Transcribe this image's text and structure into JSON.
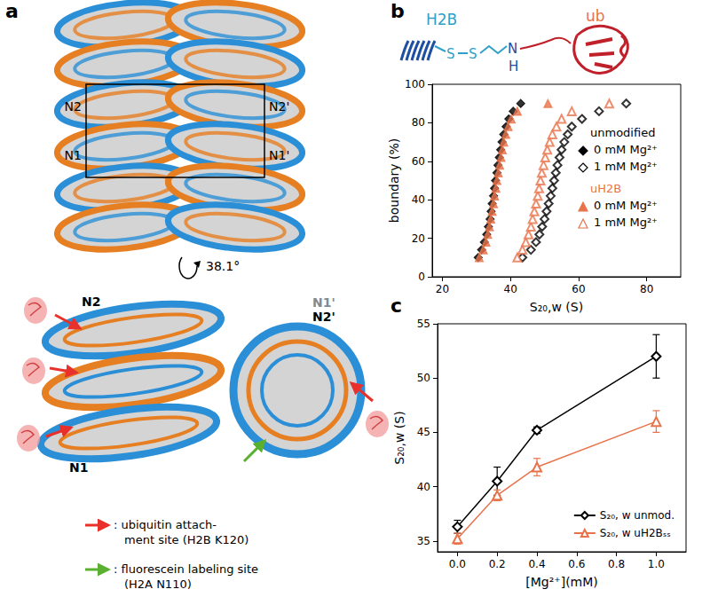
{
  "panel_a": {
    "label": "a",
    "top_labels": [
      "N2",
      "N1",
      "N2'",
      "N1'"
    ],
    "rotation": "38.1°",
    "bottom_labels": [
      "N2",
      "N1",
      "N1'",
      "N2'"
    ],
    "key": [
      {
        "lines": [
          ": ubiquitin attach-",
          "ment site (H2B K120)"
        ],
        "color": "#e8312a"
      },
      {
        "lines": [
          ": fluorescein labeling site",
          "(H2A N110)"
        ],
        "color": "#5ab031"
      }
    ]
  },
  "panel_b": {
    "label": "b",
    "schematic": {
      "protein": "H2B",
      "modifier": "ub",
      "linker": [
        "S",
        "S",
        "N",
        "H"
      ]
    }
  },
  "panel_c": {
    "label": "c"
  },
  "chart_data": [
    {
      "type": "scatter",
      "xlabel": "S₂₀,w (S)",
      "ylabel": "boundary (%)",
      "xlim": [
        17,
        90
      ],
      "xticks": [
        20,
        40,
        60,
        80
      ],
      "ylim": [
        0,
        100
      ],
      "yticks": [
        0,
        20,
        40,
        60,
        80,
        100
      ],
      "grid": false,
      "legend": "upper right",
      "legend_groups": [
        "unmodified",
        "uH2B"
      ],
      "series": [
        {
          "name": "0 mM Mg²⁺",
          "group": "unmodified",
          "color": "#000000",
          "marker": "diamond",
          "x": [
            30.5,
            31.5,
            32.3,
            33,
            33.5,
            34,
            34.3,
            34.6,
            35,
            35.3,
            35.6,
            36,
            36.3,
            36.7,
            37.1,
            37.5,
            38,
            38.7,
            39.5,
            40.8,
            43
          ],
          "values": [
            10,
            14,
            18,
            22,
            26,
            30,
            34,
            38,
            42,
            46,
            50,
            54,
            58,
            62,
            66,
            70,
            74,
            78,
            82,
            86,
            90
          ]
        },
        {
          "name": "1 mM Mg²⁺",
          "group": "unmodified",
          "color": "#000000",
          "marker": "open diamond",
          "x": [
            43.5,
            46,
            47.5,
            48.5,
            49.3,
            50,
            50.6,
            51.2,
            51.8,
            52.3,
            52.8,
            53.3,
            53.8,
            54.4,
            55,
            55.8,
            56.8,
            58,
            61,
            66,
            74
          ],
          "values": [
            10,
            14,
            18,
            22,
            26,
            30,
            34,
            38,
            42,
            46,
            50,
            54,
            58,
            62,
            66,
            70,
            74,
            78,
            82,
            86,
            90
          ]
        },
        {
          "name": "0 mM Mg²⁺",
          "group": "uH2B",
          "color": "#e8734a",
          "marker": "triangle",
          "x": [
            30.8,
            32,
            32.8,
            33.3,
            33.8,
            34.2,
            34.6,
            35,
            35.3,
            35.7,
            36,
            36.4,
            36.8,
            37.2,
            37.6,
            38,
            38.6,
            39.3,
            40.2,
            42,
            51
          ],
          "values": [
            10,
            14,
            18,
            22,
            26,
            30,
            34,
            38,
            42,
            46,
            50,
            54,
            58,
            62,
            66,
            70,
            74,
            78,
            82,
            86,
            90
          ]
        },
        {
          "name": "1 mM Mg²⁺",
          "group": "uH2B",
          "color": "#e8734a",
          "marker": "open triangle",
          "x": [
            42,
            43.5,
            44.5,
            45.3,
            46,
            46.5,
            47,
            47.5,
            48,
            48.4,
            48.8,
            49.2,
            49.7,
            50.2,
            50.8,
            51.5,
            52.3,
            53.5,
            55,
            58,
            69
          ],
          "values": [
            10,
            14,
            18,
            22,
            26,
            30,
            34,
            38,
            42,
            46,
            50,
            54,
            58,
            62,
            66,
            70,
            74,
            78,
            82,
            86,
            90
          ]
        }
      ]
    },
    {
      "type": "line",
      "xlabel": "[Mg²⁺](mM)",
      "ylabel": "S₂₀,w (S)",
      "xlim": [
        -0.1,
        1.15
      ],
      "xticks": [
        {
          "value": 0,
          "label": "0.0"
        },
        0.2,
        0.4,
        0.6,
        0.8,
        {
          "value": 1,
          "label": "1.0"
        }
      ],
      "ylim": [
        34,
        55
      ],
      "yticks": [
        35,
        40,
        45,
        50,
        55
      ],
      "grid": false,
      "legend": "lower right",
      "x": [
        0,
        0.2,
        0.4,
        1
      ],
      "series": [
        {
          "name": "S₂₀, w unmod.",
          "color": "#000000",
          "marker": "open diamond",
          "values": [
            36.3,
            40.5,
            45.2,
            52.0
          ],
          "errors": [
            0.6,
            1.3,
            0.3,
            2.0
          ]
        },
        {
          "name": "S₂₀, w uH2Bₛₛ",
          "color": "#e8734a",
          "marker": "open triangle",
          "values": [
            35.2,
            39.2,
            41.8,
            46.0
          ],
          "errors": [
            0.5,
            0.5,
            0.8,
            1.0
          ]
        }
      ]
    }
  ]
}
